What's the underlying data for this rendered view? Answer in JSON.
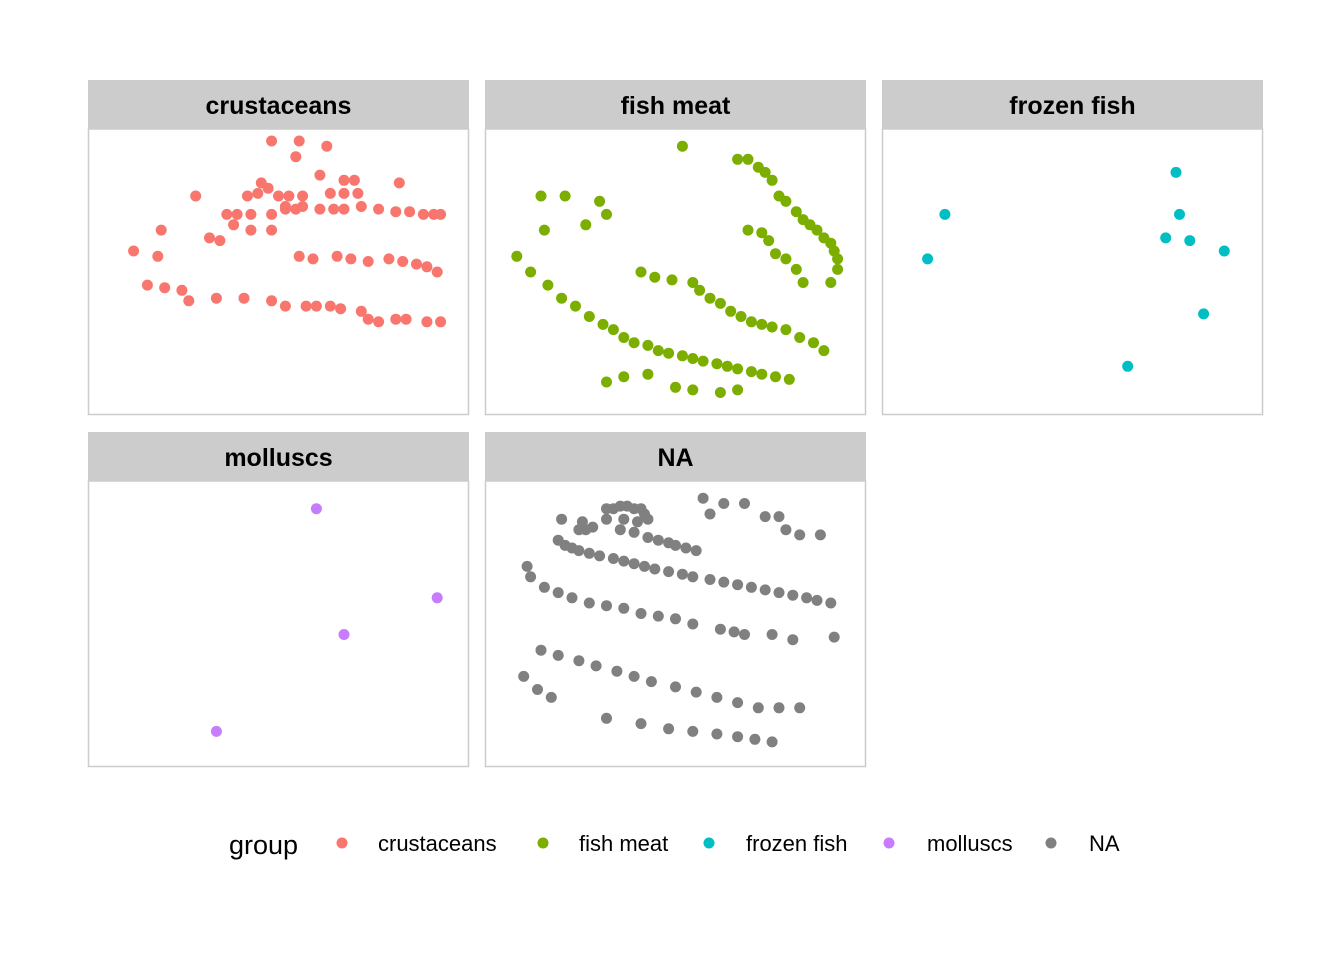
{
  "chart_data": {
    "type": "scatter",
    "facet_by": "group",
    "axes_shown": false,
    "grid": false,
    "legend": {
      "title": "group",
      "position": "bottom",
      "items": [
        {
          "label": "crustaceans",
          "color": "#F8766D"
        },
        {
          "label": "fish meat",
          "color": "#7CAE00"
        },
        {
          "label": "frozen fish",
          "color": "#00BFC4"
        },
        {
          "label": "molluscs",
          "color": "#C77CFF"
        },
        {
          "label": "NA",
          "color": "#808080"
        }
      ]
    },
    "xlim": [
      0,
      100
    ],
    "ylim": [
      0,
      100
    ],
    "panels": [
      {
        "title": "crustaceans",
        "color": "#F8766D",
        "points": [
          [
            48,
            100
          ],
          [
            56,
            100
          ],
          [
            64,
            98
          ],
          [
            55,
            94
          ],
          [
            62,
            87
          ],
          [
            69,
            85
          ],
          [
            72,
            85
          ],
          [
            45,
            84
          ],
          [
            44,
            80
          ],
          [
            41,
            79
          ],
          [
            65,
            80
          ],
          [
            85,
            84
          ],
          [
            69,
            80
          ],
          [
            73,
            80
          ],
          [
            26,
            79
          ],
          [
            47,
            82
          ],
          [
            50,
            79
          ],
          [
            53,
            79
          ],
          [
            57,
            79
          ],
          [
            52,
            75
          ],
          [
            57,
            75
          ],
          [
            35,
            72
          ],
          [
            38,
            72
          ],
          [
            42,
            72
          ],
          [
            48,
            72
          ],
          [
            52,
            74
          ],
          [
            55,
            74
          ],
          [
            62,
            74
          ],
          [
            66,
            74
          ],
          [
            69,
            74
          ],
          [
            74,
            75
          ],
          [
            79,
            74
          ],
          [
            84,
            73
          ],
          [
            88,
            73
          ],
          [
            92,
            72
          ],
          [
            95,
            72
          ],
          [
            97,
            72
          ],
          [
            37,
            68
          ],
          [
            42,
            66
          ],
          [
            48,
            66
          ],
          [
            16,
            66
          ],
          [
            30,
            63
          ],
          [
            33,
            62
          ],
          [
            8,
            58
          ],
          [
            15,
            56
          ],
          [
            56,
            56
          ],
          [
            60,
            55
          ],
          [
            67,
            56
          ],
          [
            71,
            55
          ],
          [
            76,
            54
          ],
          [
            82,
            55
          ],
          [
            86,
            54
          ],
          [
            90,
            53
          ],
          [
            93,
            52
          ],
          [
            96,
            50
          ],
          [
            12,
            45
          ],
          [
            17,
            44
          ],
          [
            22,
            43
          ],
          [
            24,
            39
          ],
          [
            32,
            40
          ],
          [
            40,
            40
          ],
          [
            48,
            39
          ],
          [
            52,
            37
          ],
          [
            58,
            37
          ],
          [
            61,
            37
          ],
          [
            65,
            37
          ],
          [
            68,
            36
          ],
          [
            74,
            35
          ],
          [
            76,
            32
          ],
          [
            79,
            31
          ],
          [
            84,
            32
          ],
          [
            87,
            32
          ],
          [
            93,
            31
          ],
          [
            97,
            31
          ]
        ]
      },
      {
        "title": "fish meat",
        "color": "#7CAE00",
        "points": [
          [
            52,
            98
          ],
          [
            68,
            93
          ],
          [
            71,
            93
          ],
          [
            74,
            90
          ],
          [
            76,
            88
          ],
          [
            78,
            85
          ],
          [
            80,
            79
          ],
          [
            82,
            77
          ],
          [
            85,
            73
          ],
          [
            87,
            70
          ],
          [
            89,
            68
          ],
          [
            91,
            66
          ],
          [
            93,
            63
          ],
          [
            95,
            61
          ],
          [
            96,
            58
          ],
          [
            97,
            55
          ],
          [
            97,
            51
          ],
          [
            95,
            46
          ],
          [
            11,
            79
          ],
          [
            18,
            79
          ],
          [
            28,
            77
          ],
          [
            30,
            72
          ],
          [
            24,
            68
          ],
          [
            12,
            66
          ],
          [
            71,
            66
          ],
          [
            75,
            65
          ],
          [
            77,
            62
          ],
          [
            79,
            57
          ],
          [
            82,
            55
          ],
          [
            85,
            51
          ],
          [
            87,
            46
          ],
          [
            40,
            50
          ],
          [
            44,
            48
          ],
          [
            49,
            47
          ],
          [
            55,
            46
          ],
          [
            57,
            43
          ],
          [
            60,
            40
          ],
          [
            63,
            38
          ],
          [
            66,
            35
          ],
          [
            69,
            33
          ],
          [
            72,
            31
          ],
          [
            75,
            30
          ],
          [
            78,
            29
          ],
          [
            82,
            28
          ],
          [
            86,
            25
          ],
          [
            90,
            23
          ],
          [
            93,
            20
          ],
          [
            4,
            56
          ],
          [
            8,
            50
          ],
          [
            13,
            45
          ],
          [
            17,
            40
          ],
          [
            21,
            37
          ],
          [
            25,
            33
          ],
          [
            29,
            30
          ],
          [
            32,
            28
          ],
          [
            35,
            25
          ],
          [
            38,
            23
          ],
          [
            42,
            22
          ],
          [
            45,
            20
          ],
          [
            48,
            19
          ],
          [
            52,
            18
          ],
          [
            55,
            17
          ],
          [
            58,
            16
          ],
          [
            62,
            15
          ],
          [
            65,
            14
          ],
          [
            68,
            13
          ],
          [
            72,
            12
          ],
          [
            75,
            11
          ],
          [
            79,
            10
          ],
          [
            83,
            9
          ],
          [
            30,
            8
          ],
          [
            35,
            10
          ],
          [
            42,
            11
          ],
          [
            50,
            6
          ],
          [
            55,
            5
          ],
          [
            63,
            4
          ],
          [
            68,
            5
          ]
        ]
      },
      {
        "title": "frozen fish",
        "color": "#00BFC4",
        "points": [
          [
            13,
            72
          ],
          [
            8,
            55
          ],
          [
            80,
            88
          ],
          [
            81,
            72
          ],
          [
            77,
            63
          ],
          [
            84,
            62
          ],
          [
            94,
            58
          ],
          [
            88,
            34
          ],
          [
            66,
            14
          ]
        ]
      },
      {
        "title": "molluscs",
        "color": "#C77CFF",
        "points": [
          [
            61,
            94
          ],
          [
            96,
            60
          ],
          [
            69,
            46
          ],
          [
            32,
            9
          ]
        ]
      },
      {
        "title": "NA",
        "color": "#808080",
        "points": [
          [
            58,
            98
          ],
          [
            64,
            96
          ],
          [
            70,
            96
          ],
          [
            30,
            94
          ],
          [
            32,
            94
          ],
          [
            34,
            95
          ],
          [
            36,
            95
          ],
          [
            38,
            94
          ],
          [
            40,
            94
          ],
          [
            41,
            92
          ],
          [
            42,
            90
          ],
          [
            30,
            90
          ],
          [
            35,
            90
          ],
          [
            39,
            89
          ],
          [
            60,
            92
          ],
          [
            76,
            91
          ],
          [
            80,
            91
          ],
          [
            82,
            86
          ],
          [
            86,
            84
          ],
          [
            92,
            84
          ],
          [
            17,
            90
          ],
          [
            23,
            89
          ],
          [
            26,
            87
          ],
          [
            24,
            86
          ],
          [
            22,
            86
          ],
          [
            34,
            86
          ],
          [
            38,
            85
          ],
          [
            42,
            83
          ],
          [
            45,
            82
          ],
          [
            48,
            81
          ],
          [
            50,
            80
          ],
          [
            53,
            79
          ],
          [
            56,
            78
          ],
          [
            16,
            82
          ],
          [
            18,
            80
          ],
          [
            20,
            79
          ],
          [
            22,
            78
          ],
          [
            25,
            77
          ],
          [
            28,
            76
          ],
          [
            32,
            75
          ],
          [
            35,
            74
          ],
          [
            38,
            73
          ],
          [
            41,
            72
          ],
          [
            44,
            71
          ],
          [
            48,
            70
          ],
          [
            52,
            69
          ],
          [
            55,
            68
          ],
          [
            60,
            67
          ],
          [
            64,
            66
          ],
          [
            68,
            65
          ],
          [
            72,
            64
          ],
          [
            76,
            63
          ],
          [
            80,
            62
          ],
          [
            84,
            61
          ],
          [
            88,
            60
          ],
          [
            91,
            59
          ],
          [
            95,
            58
          ],
          [
            7,
            72
          ],
          [
            8,
            68
          ],
          [
            12,
            64
          ],
          [
            16,
            62
          ],
          [
            20,
            60
          ],
          [
            25,
            58
          ],
          [
            30,
            57
          ],
          [
            35,
            56
          ],
          [
            40,
            54
          ],
          [
            45,
            53
          ],
          [
            50,
            52
          ],
          [
            55,
            50
          ],
          [
            63,
            48
          ],
          [
            67,
            47
          ],
          [
            70,
            46
          ],
          [
            78,
            46
          ],
          [
            84,
            44
          ],
          [
            96,
            45
          ],
          [
            11,
            40
          ],
          [
            16,
            38
          ],
          [
            22,
            36
          ],
          [
            27,
            34
          ],
          [
            33,
            32
          ],
          [
            38,
            30
          ],
          [
            43,
            28
          ],
          [
            50,
            26
          ],
          [
            56,
            24
          ],
          [
            62,
            22
          ],
          [
            68,
            20
          ],
          [
            74,
            18
          ],
          [
            80,
            18
          ],
          [
            86,
            18
          ],
          [
            6,
            30
          ],
          [
            10,
            25
          ],
          [
            14,
            22
          ],
          [
            30,
            14
          ],
          [
            40,
            12
          ],
          [
            48,
            10
          ],
          [
            55,
            9
          ],
          [
            62,
            8
          ],
          [
            68,
            7
          ],
          [
            73,
            6
          ],
          [
            78,
            5
          ]
        ]
      }
    ]
  }
}
